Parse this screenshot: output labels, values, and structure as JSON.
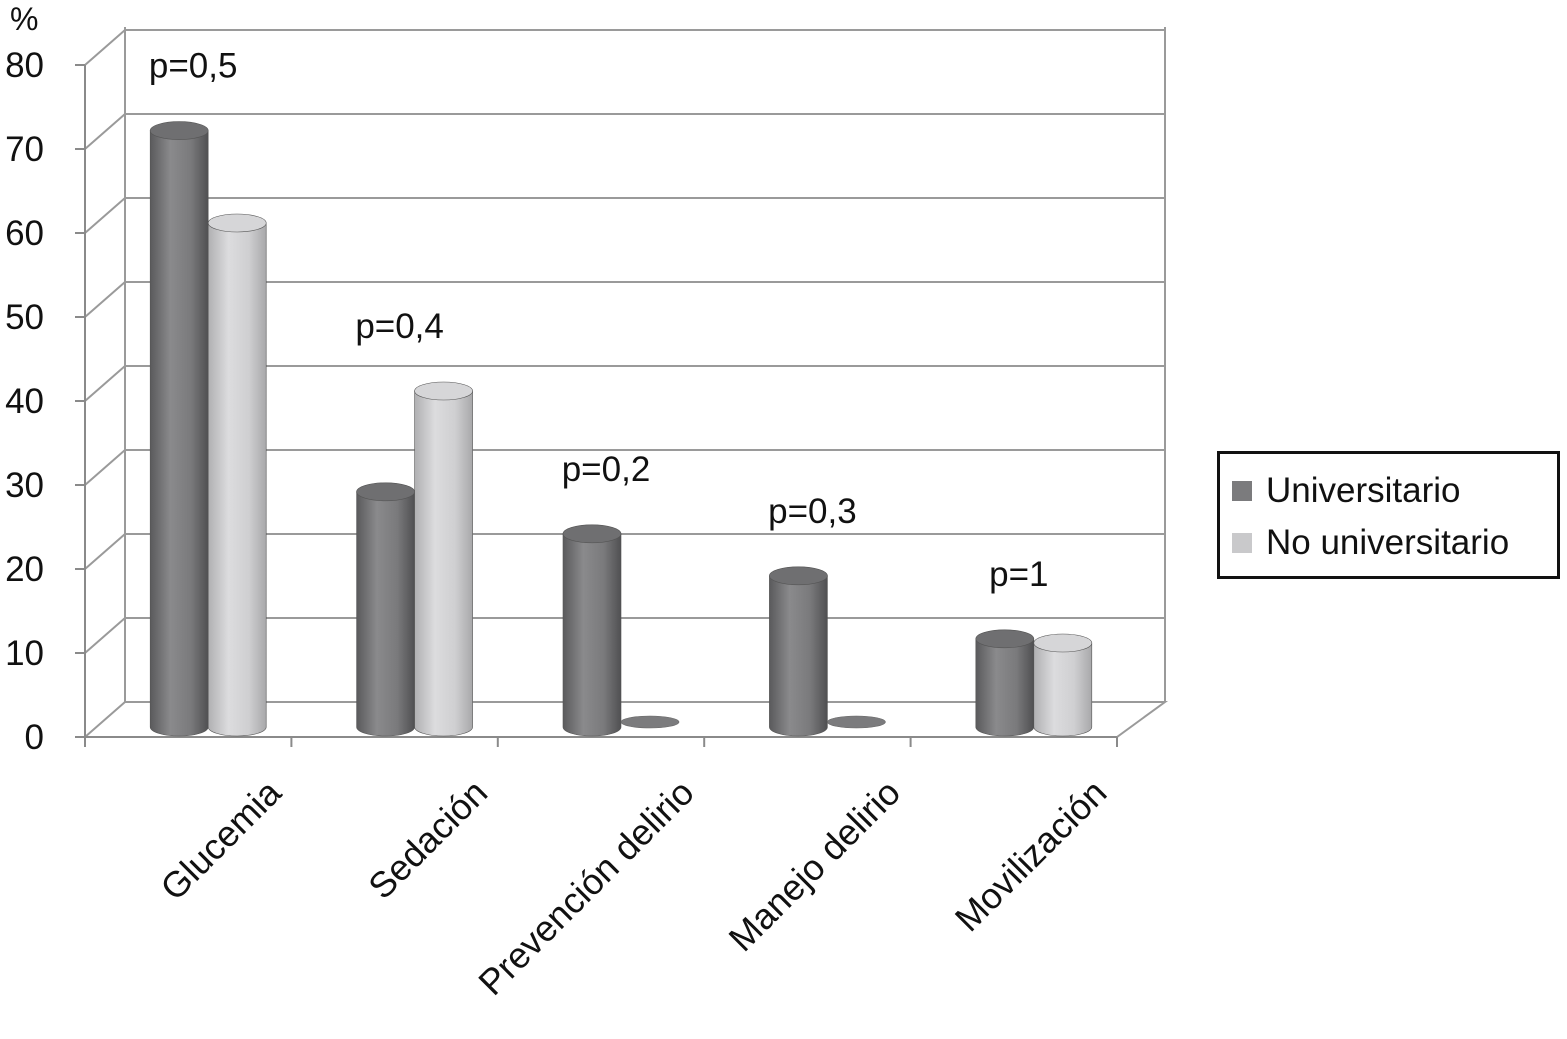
{
  "chart_data": {
    "type": "bar",
    "title": "",
    "xlabel": "",
    "ylabel": "%",
    "ylim": [
      0,
      80
    ],
    "yticks": [
      0,
      10,
      20,
      30,
      40,
      50,
      60,
      70,
      80
    ],
    "grid": true,
    "legend_position": "right",
    "categories": [
      "Glucemia",
      "Sedación",
      "Prevención delirio",
      "Manejo delirio",
      "Movilización"
    ],
    "series": [
      {
        "name": "Universitario",
        "color": "#7b7b7d",
        "values": [
          71,
          28,
          23,
          18,
          10.5
        ]
      },
      {
        "name": "No universitario",
        "color": "#c9c9cb",
        "values": [
          60,
          40,
          0,
          0,
          10
        ]
      }
    ],
    "annotations": [
      "p=0,5",
      "p=0,4",
      "p=0,2",
      "p=0,3",
      "p=1"
    ]
  }
}
